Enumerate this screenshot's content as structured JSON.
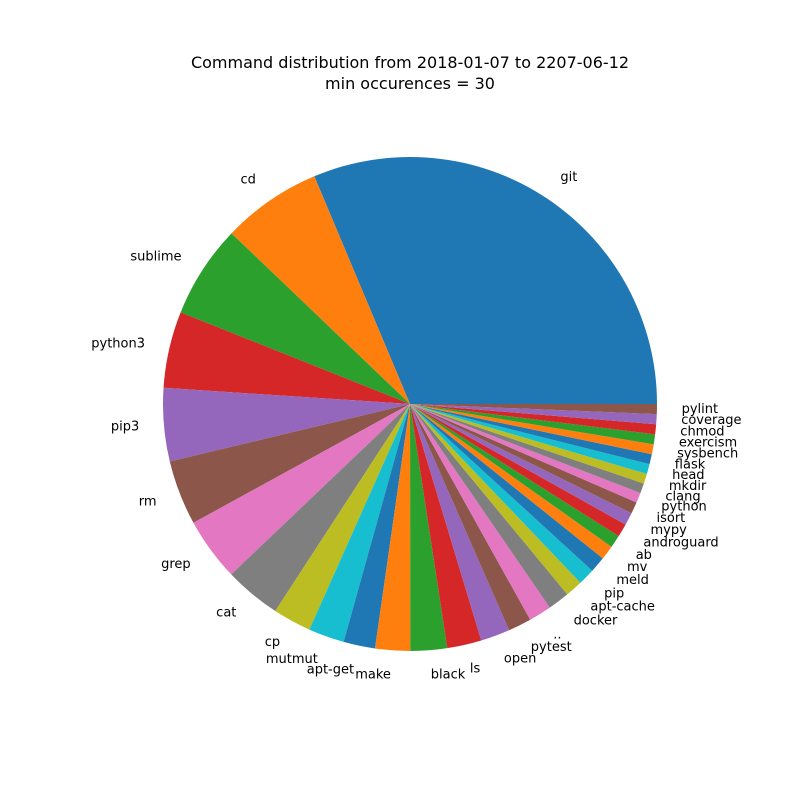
{
  "chart_data": {
    "type": "pie",
    "title": "Command distribution from 2018-01-07 to 2207-06-12",
    "subtitle": "min occurences = 30",
    "start_angle_deg": 0,
    "direction": "counterclockwise",
    "labels": [
      "git",
      "cd",
      "sublime",
      "python3",
      "pip3",
      "rm",
      "grep",
      "cat",
      "cp",
      "mutmut",
      "apt-get",
      "make",
      "black",
      "ls",
      "open",
      "pytest",
      "..",
      "docker",
      "apt-cache",
      "pip",
      "meld",
      "mv",
      "ab",
      "androguard",
      "mypy",
      "isort",
      "python",
      "clang",
      "mkdir",
      "head",
      "flask",
      "sysbench",
      "exercism",
      "chmod",
      "coverage",
      "pylint"
    ],
    "values": [
      1440,
      300,
      280,
      230,
      220,
      195,
      190,
      170,
      115,
      108,
      95,
      105,
      110,
      103,
      88,
      70,
      68,
      65,
      52,
      50,
      48,
      43,
      38,
      40,
      38,
      35,
      30,
      30,
      30,
      30,
      30,
      30,
      30,
      30,
      30,
      30
    ],
    "colors": [
      "#1f77b4",
      "#ff7f0e",
      "#2ca02c",
      "#d62728",
      "#9467bd",
      "#8c564b",
      "#e377c2",
      "#7f7f7f",
      "#bcbd22",
      "#17becf"
    ]
  }
}
